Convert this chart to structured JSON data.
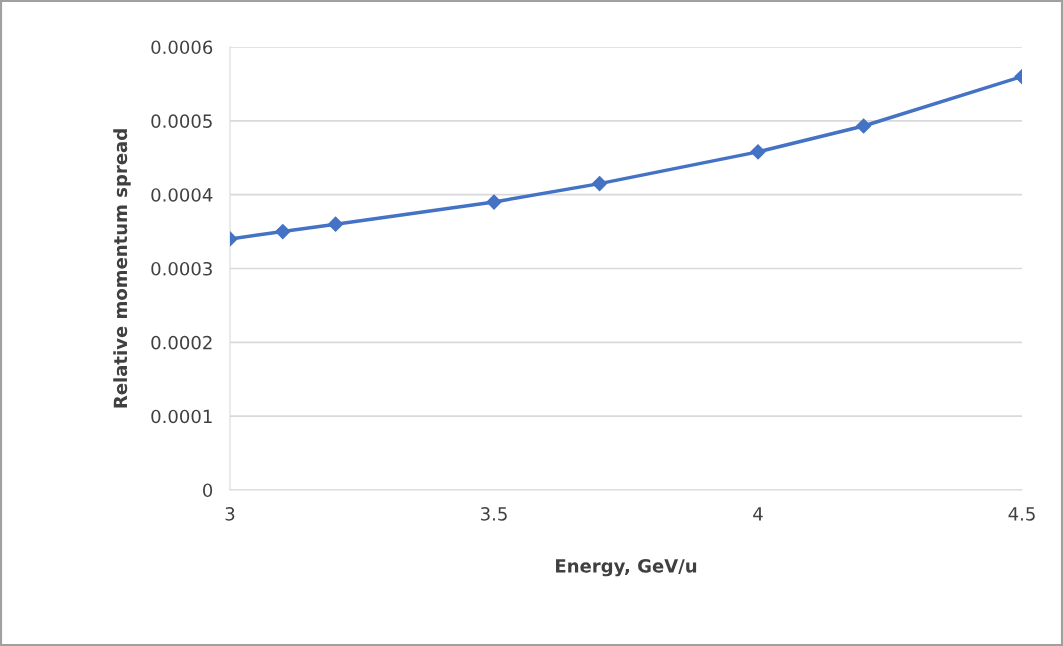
{
  "chart_data": {
    "type": "line",
    "xlabel": "Energy, GeV/u",
    "ylabel": "Relative momentum spread",
    "x": [
      3,
      3.1,
      3.2,
      3.5,
      3.7,
      4.0,
      4.2,
      4.5
    ],
    "series": [
      {
        "color": "#4472c4",
        "values": [
          0.00034,
          0.00035,
          0.00036,
          0.00039,
          0.000415,
          0.000458,
          0.000493,
          0.00056
        ]
      }
    ],
    "xlim": [
      3,
      4.5
    ],
    "xticks": [
      3,
      3.5,
      4,
      4.5
    ],
    "ylim": [
      0,
      0.0006
    ],
    "yticks": [
      {
        "value": 0,
        "label": "0"
      },
      {
        "value": 0.0001,
        "label": "0.0001"
      },
      {
        "value": 0.0002,
        "label": "0.0002"
      },
      {
        "value": 0.0003,
        "label": "0.0003"
      },
      {
        "value": 0.0004,
        "label": "0.0004"
      },
      {
        "value": 0.0005,
        "label": "0.0005"
      },
      {
        "value": 0.0006,
        "label": "0.0006"
      }
    ],
    "grid": "y",
    "marker": "diamond",
    "line_style": "solid",
    "legend": false
  }
}
